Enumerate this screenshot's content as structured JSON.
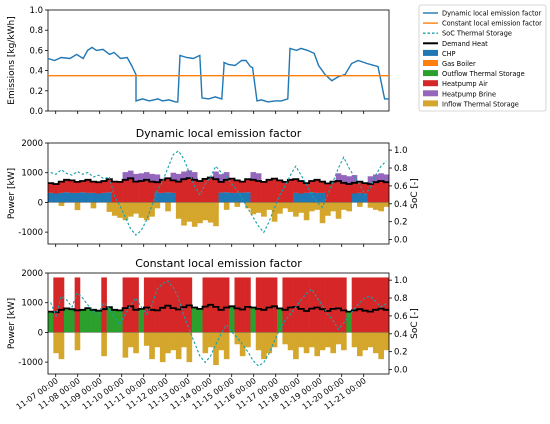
{
  "colors": {
    "dynamic_factor": "#1f77b4",
    "constant_factor": "#ff7f0e",
    "soc": "#17a0a8",
    "demand_heat": "#000000",
    "chp": "#1f77b4",
    "gas_boiler": "#ff7f0e",
    "outflow_storage": "#2ca02c",
    "heatpump_air": "#d62728",
    "heatpump_brine": "#9467bd",
    "inflow_storage": "#d4a72c"
  },
  "legend": {
    "placement": "right of top panel",
    "entries": [
      {
        "label": "Dynamic local emission factor",
        "kind": "line",
        "color_key": "dynamic_factor"
      },
      {
        "label": "Constant local emission factor",
        "kind": "line",
        "color_key": "constant_factor"
      },
      {
        "label": "SoC Thermal Storage",
        "kind": "dashed",
        "color_key": "soc"
      },
      {
        "label": "Demand Heat",
        "kind": "thick",
        "color_key": "demand_heat"
      },
      {
        "label": "CHP",
        "kind": "patch",
        "color_key": "chp"
      },
      {
        "label": "Gas Boiler",
        "kind": "patch",
        "color_key": "gas_boiler"
      },
      {
        "label": "Outflow Thermal Storage",
        "kind": "patch",
        "color_key": "outflow_storage"
      },
      {
        "label": "Heatpump Air",
        "kind": "patch",
        "color_key": "heatpump_air"
      },
      {
        "label": "Heatpump Brine",
        "kind": "patch",
        "color_key": "heatpump_brine"
      },
      {
        "label": "Inflow Thermal Storage",
        "kind": "patch",
        "color_key": "inflow_storage"
      }
    ]
  },
  "x_tick_labels": [
    "11-07 00:00",
    "11-08 00:00",
    "11-09 00:00",
    "11-10 00:00",
    "11-11 00:00",
    "11-12 00:00",
    "11-13 00:00",
    "11-14 00:00",
    "11-15 00:00",
    "11-16 00:00",
    "11-17 00:00",
    "11-18 00:00",
    "11-19 00:00",
    "11-20 00:00",
    "11-21 00:00"
  ],
  "chart_data": [
    {
      "type": "line",
      "title": "",
      "xlabel": "",
      "ylabel": "Emissions [kg/kWh]",
      "x_unit": "days since 11-07 00:00",
      "xlim": [
        0,
        15.5
      ],
      "ylim": [
        0.0,
        1.0
      ],
      "yticks": [
        0.0,
        0.2,
        0.4,
        0.6,
        0.8,
        1.0
      ],
      "grid": false,
      "series": [
        {
          "name": "Dynamic local emission factor",
          "x": [
            0,
            0.3,
            0.6,
            1.0,
            1.3,
            1.6,
            1.8,
            2.0,
            2.2,
            2.5,
            2.8,
            3.0,
            3.3,
            3.6,
            3.8,
            4.0,
            4.0,
            4.3,
            4.6,
            5.0,
            5.2,
            5.5,
            5.8,
            5.9,
            6.0,
            6.3,
            6.6,
            6.9,
            7.0,
            7.3,
            7.6,
            7.9,
            8.0,
            8.0,
            8.2,
            8.5,
            8.8,
            9.0,
            9.2,
            9.3,
            9.5,
            9.7,
            10.0,
            10.3,
            10.6,
            10.9,
            11.0,
            11.3,
            11.5,
            11.8,
            12.0,
            12.1,
            12.3,
            12.6,
            12.9,
            13.2,
            13.5,
            13.8,
            14.1,
            14.5,
            15.0,
            15.3,
            15.5
          ],
          "y": [
            0.52,
            0.5,
            0.53,
            0.52,
            0.56,
            0.52,
            0.6,
            0.63,
            0.6,
            0.61,
            0.56,
            0.58,
            0.52,
            0.53,
            0.45,
            0.36,
            0.1,
            0.12,
            0.1,
            0.12,
            0.1,
            0.11,
            0.09,
            0.09,
            0.55,
            0.53,
            0.52,
            0.55,
            0.13,
            0.12,
            0.14,
            0.12,
            0.45,
            0.48,
            0.46,
            0.45,
            0.5,
            0.5,
            0.44,
            0.43,
            0.1,
            0.11,
            0.09,
            0.1,
            0.1,
            0.12,
            0.62,
            0.6,
            0.62,
            0.6,
            0.58,
            0.57,
            0.45,
            0.36,
            0.3,
            0.34,
            0.36,
            0.47,
            0.5,
            0.47,
            0.44,
            0.12,
            0.12
          ]
        },
        {
          "name": "Constant local emission factor",
          "x": [
            0,
            15.5
          ],
          "y": [
            0.35,
            0.35
          ]
        }
      ]
    },
    {
      "type": "area",
      "title": "Dynamic local emission factor",
      "xlabel": "",
      "ylabel": "Power [kW]",
      "y2label": "SoC [-]",
      "xlim": [
        0,
        15.5
      ],
      "ylim": [
        -1400,
        2000
      ],
      "yticks": [
        -1000,
        0,
        1000,
        2000
      ],
      "y2lim": [
        -0.05,
        1.08
      ],
      "y2ticks": [
        0.0,
        0.2,
        0.4,
        0.6,
        0.8,
        1.0
      ],
      "grid": false,
      "demand_heat": [
        650,
        620,
        700,
        760,
        740,
        690,
        720,
        760,
        700,
        680,
        720,
        780,
        700,
        690,
        760,
        810,
        700,
        720,
        760,
        700,
        680,
        760,
        810,
        740,
        700,
        780,
        820,
        760,
        720,
        790,
        840,
        780,
        690,
        760,
        800,
        740,
        700,
        780,
        760,
        720,
        690,
        760,
        800,
        740,
        690,
        760,
        780,
        720,
        650,
        720,
        760,
        700,
        640,
        700,
        720,
        660,
        620,
        660,
        700,
        650,
        620,
        680,
        720,
        680
      ],
      "chp_level": [
        320,
        300,
        320,
        340,
        320,
        320,
        340,
        320,
        320,
        300,
        320,
        340,
        0,
        0,
        0,
        0,
        0,
        0,
        0,
        0,
        330,
        320,
        340,
        320,
        0,
        0,
        0,
        0,
        0,
        0,
        0,
        0,
        330,
        340,
        320,
        320,
        330,
        340,
        0,
        0,
        0,
        0,
        0,
        0,
        0,
        0,
        320,
        300,
        320,
        340,
        320,
        320,
        0,
        0,
        0,
        0,
        0,
        300,
        320,
        300,
        0,
        0,
        0,
        0
      ],
      "inflow_storage": [
        0,
        0,
        -120,
        0,
        0,
        -260,
        0,
        0,
        -200,
        0,
        0,
        -320,
        -450,
        -520,
        -600,
        -480,
        -380,
        -520,
        -600,
        -480,
        -200,
        0,
        -300,
        0,
        -550,
        -780,
        -650,
        -820,
        -700,
        -600,
        -680,
        -800,
        0,
        -250,
        0,
        -150,
        0,
        -200,
        -400,
        -350,
        -480,
        -250,
        -650,
        -380,
        -200,
        -320,
        -480,
        -350,
        -600,
        -300,
        -250,
        -700,
        -450,
        -300,
        -550,
        -250,
        -300,
        0,
        -150,
        0,
        -180,
        -250,
        -300,
        -150
      ],
      "brine_on": [
        false,
        false,
        false,
        false,
        false,
        false,
        false,
        false,
        false,
        false,
        false,
        false,
        false,
        false,
        true,
        true,
        true,
        true,
        true,
        true,
        true,
        false,
        false,
        true,
        true,
        true,
        true,
        true,
        false,
        false,
        false,
        true,
        true,
        true,
        false,
        false,
        false,
        false,
        true,
        true,
        false,
        false,
        false,
        false,
        false,
        false,
        false,
        false,
        false,
        false,
        false,
        false,
        false,
        false,
        true,
        true,
        true,
        true,
        false,
        false,
        true,
        true,
        true,
        true
      ],
      "soc": [
        0.75,
        0.73,
        0.78,
        0.74,
        0.72,
        0.76,
        0.73,
        0.75,
        0.7,
        0.72,
        0.68,
        0.7,
        0.48,
        0.38,
        0.25,
        0.12,
        0.05,
        0.1,
        0.22,
        0.38,
        0.55,
        0.65,
        0.8,
        0.95,
        0.99,
        0.9,
        0.75,
        0.6,
        0.5,
        0.62,
        0.7,
        0.82,
        0.75,
        0.7,
        0.62,
        0.55,
        0.45,
        0.35,
        0.25,
        0.15,
        0.08,
        0.2,
        0.35,
        0.5,
        0.6,
        0.72,
        0.82,
        0.72,
        0.62,
        0.5,
        0.42,
        0.36,
        0.5,
        0.65,
        0.8,
        0.92,
        0.8,
        0.7,
        0.62,
        0.5,
        0.58,
        0.72,
        0.82,
        0.88
      ]
    },
    {
      "type": "area",
      "title": "Constant local emission factor",
      "xlabel": "",
      "ylabel": "Power [kW]",
      "y2label": "SoC [-]",
      "xlim": [
        0,
        15.5
      ],
      "ylim": [
        -1400,
        2000
      ],
      "yticks": [
        -1000,
        0,
        1000,
        2000
      ],
      "y2lim": [
        -0.05,
        1.08
      ],
      "y2ticks": [
        0.0,
        0.2,
        0.4,
        0.6,
        0.8,
        1.0
      ],
      "grid": false,
      "demand_heat": [
        700,
        680,
        760,
        810,
        780,
        740,
        760,
        820,
        760,
        730,
        780,
        850,
        760,
        740,
        820,
        880,
        760,
        790,
        840,
        760,
        740,
        830,
        900,
        820,
        770,
        850,
        910,
        840,
        790,
        870,
        930,
        860,
        760,
        840,
        880,
        810,
        770,
        860,
        840,
        790,
        760,
        840,
        880,
        810,
        760,
        840,
        860,
        790,
        720,
        800,
        840,
        780,
        720,
        790,
        810,
        740,
        700,
        740,
        780,
        730,
        700,
        760,
        800,
        760
      ],
      "heatpump_air_on": [
        false,
        true,
        true,
        false,
        false,
        true,
        false,
        false,
        false,
        false,
        true,
        false,
        false,
        false,
        true,
        true,
        true,
        false,
        true,
        true,
        true,
        true,
        true,
        true,
        true,
        true,
        true,
        false,
        false,
        true,
        true,
        true,
        true,
        true,
        false,
        true,
        true,
        true,
        false,
        true,
        true,
        true,
        true,
        false,
        true,
        true,
        true,
        true,
        true,
        true,
        true,
        true,
        true,
        true,
        true,
        true,
        false,
        true,
        true,
        true,
        true,
        true,
        true,
        true
      ],
      "heatpump_air_level": 1850,
      "inflow_storage": [
        0,
        -700,
        -900,
        0,
        0,
        -600,
        0,
        0,
        0,
        0,
        -800,
        0,
        0,
        0,
        -850,
        -500,
        -700,
        0,
        -450,
        -900,
        -500,
        -1000,
        -700,
        -600,
        -900,
        -500,
        -1000,
        0,
        0,
        -700,
        -500,
        -1100,
        -600,
        -900,
        0,
        -400,
        -800,
        -500,
        0,
        -600,
        -900,
        -700,
        -500,
        0,
        -400,
        -600,
        -900,
        -500,
        -700,
        -500,
        -800,
        -600,
        -500,
        -700,
        -400,
        -600,
        0,
        -500,
        -800,
        -600,
        -500,
        -700,
        -900,
        -600
      ],
      "soc": [
        0.75,
        0.6,
        0.82,
        0.78,
        0.7,
        0.86,
        0.8,
        0.72,
        0.66,
        0.6,
        0.75,
        0.68,
        0.58,
        0.5,
        0.62,
        0.72,
        0.8,
        0.7,
        0.62,
        0.72,
        0.9,
        0.96,
        0.99,
        0.92,
        0.8,
        0.6,
        0.45,
        0.3,
        0.15,
        0.08,
        0.15,
        0.28,
        0.4,
        0.5,
        0.42,
        0.36,
        0.28,
        0.2,
        0.1,
        0.04,
        0.08,
        0.18,
        0.32,
        0.45,
        0.55,
        0.62,
        0.7,
        0.78,
        0.85,
        0.9,
        0.8,
        0.72,
        0.62,
        0.55,
        0.45,
        0.52,
        0.6,
        0.68,
        0.75,
        0.8,
        0.82,
        0.76,
        0.7,
        0.74
      ]
    }
  ]
}
